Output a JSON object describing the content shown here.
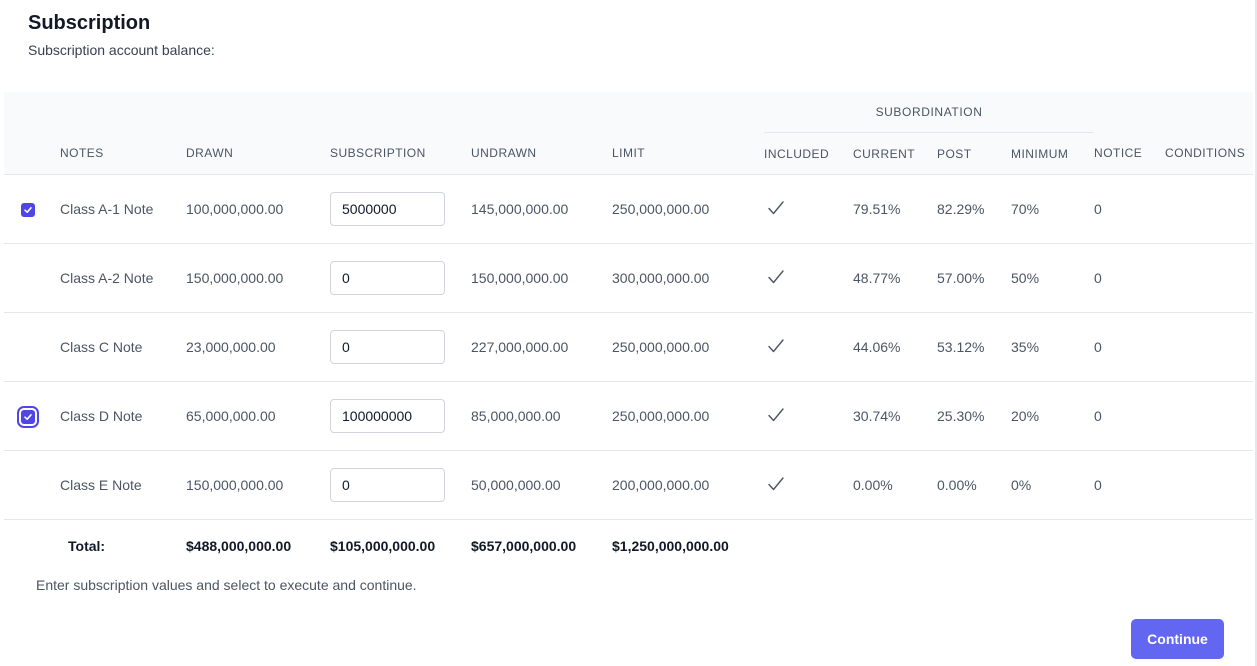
{
  "header": {
    "title": "Subscription",
    "subtitle": "Subscription account balance:"
  },
  "table": {
    "group_header": "SUBORDINATION",
    "columns": {
      "notes": "NOTES",
      "drawn": "DRAWN",
      "subscription": "SUBSCRIPTION",
      "undrawn": "UNDRAWN",
      "limit": "LIMIT",
      "included": "INCLUDED",
      "current": "CURRENT",
      "post": "POST",
      "minimum": "MINIMUM",
      "notice": "NOTICE",
      "conditions": "CONDITIONS"
    },
    "rows": [
      {
        "selected": true,
        "focused": false,
        "note": "Class A-1 Note",
        "drawn": "100,000,000.00",
        "subscription": "5000000",
        "undrawn": "145,000,000.00",
        "limit": "250,000,000.00",
        "included": true,
        "current": "79.51%",
        "post": "82.29%",
        "minimum": "70%",
        "notice": "0",
        "conditions": ""
      },
      {
        "selected": false,
        "focused": false,
        "note": "Class A-2 Note",
        "drawn": "150,000,000.00",
        "subscription": "0",
        "undrawn": "150,000,000.00",
        "limit": "300,000,000.00",
        "included": true,
        "current": "48.77%",
        "post": "57.00%",
        "minimum": "50%",
        "notice": "0",
        "conditions": ""
      },
      {
        "selected": false,
        "focused": false,
        "note": "Class C Note",
        "drawn": "23,000,000.00",
        "subscription": "0",
        "undrawn": "227,000,000.00",
        "limit": "250,000,000.00",
        "included": true,
        "current": "44.06%",
        "post": "53.12%",
        "minimum": "35%",
        "notice": "0",
        "conditions": ""
      },
      {
        "selected": true,
        "focused": true,
        "note": "Class D Note",
        "drawn": "65,000,000.00",
        "subscription": "100000000",
        "undrawn": "85,000,000.00",
        "limit": "250,000,000.00",
        "included": true,
        "current": "30.74%",
        "post": "25.30%",
        "minimum": "20%",
        "notice": "0",
        "conditions": ""
      },
      {
        "selected": false,
        "focused": false,
        "note": "Class E Note",
        "drawn": "150,000,000.00",
        "subscription": "0",
        "undrawn": "50,000,000.00",
        "limit": "200,000,000.00",
        "included": true,
        "current": "0.00%",
        "post": "0.00%",
        "minimum": "0%",
        "notice": "0",
        "conditions": ""
      }
    ],
    "totals": {
      "label": "Total:",
      "drawn": "$488,000,000.00",
      "subscription": "$105,000,000.00",
      "undrawn": "$657,000,000.00",
      "limit": "$1,250,000,000.00"
    }
  },
  "footer": {
    "note": "Enter subscription values and select to execute and continue.",
    "continue_label": "Continue"
  },
  "colors": {
    "accent": "#4f46e5",
    "button": "#6366f1",
    "header_bg": "#f9fafb",
    "border": "#e5e7eb"
  },
  "icons": {
    "row_checkbox": "checkbox-checked-icon",
    "included": "checkmark-icon"
  }
}
